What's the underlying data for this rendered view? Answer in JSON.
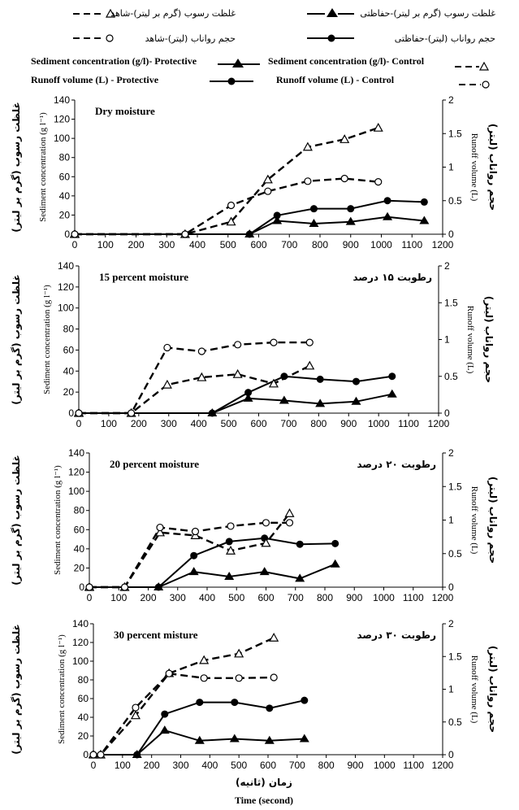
{
  "legend": {
    "fa_control_sed": "غلظت رسوب (گرم بر لیتر)-شاهد",
    "fa_prot_sed": "غلظت رسوب (گرم بر لیتر)-حفاظتی",
    "fa_control_run": "حجم رواناب (لیتر)-شاهد",
    "fa_prot_run": "حجم رواناب (لیتر)-حفاظتی",
    "en_prot_sed": "Sediment concentration (g/l)- Protective",
    "en_control_sed": "Sediment concentration (g/l)-  Control",
    "en_prot_run": "Runoff volume  (L) - Protective",
    "en_control_run": "Runoff volume  (L) -  Control"
  },
  "axes": {
    "left_fa": "غلظت رسوب (گرم بر لیتر)",
    "left_en": "Sediment concentration (g l⁻¹)",
    "right_en": "Runoff volume (L)",
    "right_fa": "حجم رواناب (لیتر)",
    "x_fa": "زمان (ثانیه)",
    "x_en": "Time (second)"
  },
  "styles": {
    "control_sed": {
      "line": "dashed",
      "marker": "open-triangle"
    },
    "control_run": {
      "line": "dashed",
      "marker": "open-circle"
    },
    "prot_sed": {
      "line": "solid",
      "marker": "filled-triangle"
    },
    "prot_run": {
      "line": "solid",
      "marker": "filled-circle"
    }
  },
  "chart_data": [
    {
      "type": "line",
      "title_en": "Dry moisture",
      "title_fa": "",
      "xlim": [
        0,
        1200
      ],
      "x_ticks": [
        0,
        100,
        200,
        300,
        400,
        500,
        600,
        700,
        800,
        900,
        1000,
        1100,
        1200
      ],
      "ylim": [
        0,
        140
      ],
      "y_ticks": [
        0,
        20,
        40,
        60,
        80,
        100,
        120,
        140
      ],
      "y2lim": [
        0,
        2
      ],
      "y2_ticks": [
        "0",
        "0.5",
        "1",
        "1.5",
        "2"
      ],
      "series": {
        "control_sed": [
          [
            0,
            0
          ],
          [
            360,
            0
          ],
          [
            510,
            13
          ],
          [
            630,
            57
          ],
          [
            760,
            91
          ],
          [
            880,
            99
          ],
          [
            990,
            111
          ]
        ],
        "control_run": [
          [
            0,
            0
          ],
          [
            360,
            0
          ],
          [
            510,
            0.43
          ],
          [
            630,
            0.64
          ],
          [
            760,
            0.79
          ],
          [
            880,
            0.83
          ],
          [
            990,
            0.78
          ]
        ],
        "prot_sed": [
          [
            0,
            0
          ],
          [
            570,
            0
          ],
          [
            660,
            14
          ],
          [
            780,
            11
          ],
          [
            900,
            13
          ],
          [
            1020,
            18
          ],
          [
            1140,
            14
          ]
        ],
        "prot_run": [
          [
            0,
            0
          ],
          [
            570,
            0
          ],
          [
            660,
            0.28
          ],
          [
            780,
            0.38
          ],
          [
            900,
            0.38
          ],
          [
            1020,
            0.5
          ],
          [
            1140,
            0.48
          ]
        ]
      }
    },
    {
      "type": "line",
      "title_en": "15 percent moisture",
      "title_fa": "رطوبت ۱۵ درصد",
      "xlim": [
        0,
        1200
      ],
      "x_ticks": [
        0,
        100,
        200,
        300,
        400,
        500,
        600,
        700,
        800,
        900,
        1000,
        1100,
        1200
      ],
      "ylim": [
        0,
        140
      ],
      "y_ticks": [
        0,
        20,
        40,
        60,
        80,
        100,
        120,
        140
      ],
      "y2lim": [
        0,
        2
      ],
      "y2_ticks": [
        "0",
        "0.5",
        "1",
        "1.5",
        "2"
      ],
      "series": {
        "control_sed": [
          [
            0,
            0
          ],
          [
            175,
            0
          ],
          [
            295,
            27
          ],
          [
            410,
            34
          ],
          [
            530,
            37
          ],
          [
            650,
            28
          ],
          [
            770,
            45
          ]
        ],
        "control_run": [
          [
            0,
            0
          ],
          [
            175,
            0
          ],
          [
            295,
            0.89
          ],
          [
            410,
            0.84
          ],
          [
            530,
            0.93
          ],
          [
            650,
            0.96
          ],
          [
            770,
            0.96
          ]
        ],
        "prot_sed": [
          [
            0,
            0
          ],
          [
            445,
            0
          ],
          [
            565,
            14
          ],
          [
            685,
            12
          ],
          [
            805,
            9
          ],
          [
            925,
            11
          ],
          [
            1045,
            18
          ]
        ],
        "prot_run": [
          [
            0,
            0
          ],
          [
            445,
            0
          ],
          [
            565,
            0.28
          ],
          [
            685,
            0.5
          ],
          [
            805,
            0.46
          ],
          [
            925,
            0.43
          ],
          [
            1045,
            0.5
          ]
        ]
      }
    },
    {
      "type": "line",
      "title_en": "20 percent moisture",
      "title_fa": "رطوبت ۲۰ درصد",
      "xlim": [
        0,
        1200
      ],
      "x_ticks": [
        0,
        100,
        200,
        300,
        400,
        500,
        600,
        700,
        800,
        900,
        1000,
        1100,
        1200
      ],
      "ylim": [
        0,
        140
      ],
      "y_ticks": [
        0,
        20,
        40,
        60,
        80,
        100,
        120,
        140
      ],
      "y2lim": [
        0,
        2
      ],
      "y2_ticks": [
        "0",
        "0.5",
        "1",
        "1.5",
        "2"
      ],
      "series": {
        "control_sed": [
          [
            0,
            0
          ],
          [
            120,
            0
          ],
          [
            240,
            57
          ],
          [
            360,
            54
          ],
          [
            480,
            38
          ],
          [
            600,
            46
          ],
          [
            680,
            77
          ]
        ],
        "control_run": [
          [
            0,
            0
          ],
          [
            120,
            0
          ],
          [
            240,
            0.89
          ],
          [
            360,
            0.83
          ],
          [
            480,
            0.91
          ],
          [
            600,
            0.96
          ],
          [
            680,
            0.96
          ]
        ],
        "prot_sed": [
          [
            0,
            0
          ],
          [
            235,
            0
          ],
          [
            355,
            16
          ],
          [
            475,
            11
          ],
          [
            595,
            16
          ],
          [
            715,
            9
          ],
          [
            835,
            24
          ]
        ],
        "prot_run": [
          [
            0,
            0
          ],
          [
            235,
            0
          ],
          [
            355,
            0.47
          ],
          [
            475,
            0.68
          ],
          [
            595,
            0.73
          ],
          [
            715,
            0.64
          ],
          [
            835,
            0.65
          ]
        ]
      }
    },
    {
      "type": "line",
      "title_en": "30 percent misture",
      "title_fa": "رطوبت ۳۰ درصد",
      "xlim": [
        0,
        1200
      ],
      "x_ticks": [
        0,
        100,
        200,
        300,
        400,
        500,
        600,
        700,
        800,
        900,
        1000,
        1100,
        1200
      ],
      "ylim": [
        0,
        140
      ],
      "y_ticks": [
        0,
        20,
        40,
        60,
        80,
        100,
        120,
        140
      ],
      "y2lim": [
        0,
        2
      ],
      "y2_ticks": [
        "0",
        "0.5",
        "1",
        "1.5",
        "2"
      ],
      "series": {
        "control_sed": [
          [
            0,
            0
          ],
          [
            25,
            0
          ],
          [
            145,
            42
          ],
          [
            260,
            87
          ],
          [
            380,
            101
          ],
          [
            500,
            108
          ],
          [
            620,
            125
          ]
        ],
        "control_run": [
          [
            0,
            0
          ],
          [
            25,
            0
          ],
          [
            145,
            0.72
          ],
          [
            260,
            1.24
          ],
          [
            380,
            1.17
          ],
          [
            500,
            1.17
          ],
          [
            620,
            1.18
          ]
        ],
        "prot_sed": [
          [
            0,
            0
          ],
          [
            150,
            0
          ],
          [
            245,
            26
          ],
          [
            365,
            15
          ],
          [
            485,
            17
          ],
          [
            605,
            15
          ],
          [
            725,
            17
          ]
        ],
        "prot_run": [
          [
            0,
            0
          ],
          [
            150,
            0
          ],
          [
            245,
            0.62
          ],
          [
            365,
            0.8
          ],
          [
            485,
            0.8
          ],
          [
            605,
            0.71
          ],
          [
            725,
            0.83
          ]
        ]
      }
    }
  ]
}
